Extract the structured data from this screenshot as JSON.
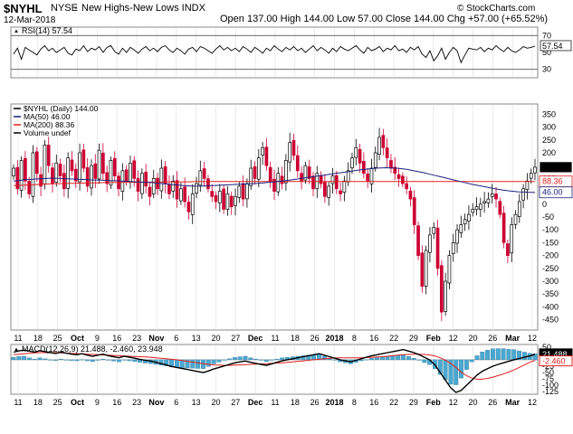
{
  "header": {
    "symbol": "$NYHL",
    "exchange": "NYSE",
    "name": "New Highs-New Lows INDX",
    "date": "12-Mar-2018",
    "ohlc": "Open 137.00  High 144.00  Low 57.00  Close 144.00  Chg +57.00 (+65.52%)",
    "copyright": "© StockCharts.com"
  },
  "colors": {
    "up": "#000000",
    "down": "#cc0033",
    "ma50": "#1a237e",
    "ma200": "#e02020",
    "macd": "#000000",
    "signal": "#e02020",
    "hist": "#4aa8d0",
    "grid": "#dddddd",
    "panel_border": "#888888"
  },
  "chart_data": [
    {
      "type": "line",
      "panel": "rsi",
      "legend": "RSI(14) 57.54",
      "ylim": [
        20,
        80
      ],
      "yticks": [
        70,
        50,
        30
      ],
      "levels": [
        70,
        30
      ],
      "last_label": "57.54",
      "series": [
        {
          "name": "RSI(14)",
          "values": [
            48,
            55,
            42,
            56,
            53,
            50,
            47,
            54,
            58,
            52,
            55,
            50,
            53,
            56,
            49,
            47,
            54,
            52,
            58,
            51,
            55,
            53,
            57,
            50,
            56,
            58,
            51,
            48,
            55,
            50,
            56,
            53,
            49,
            54,
            57,
            52,
            55,
            51,
            56,
            58,
            53,
            50,
            55,
            52,
            48,
            54,
            56,
            51,
            57,
            55,
            52,
            49,
            54,
            58,
            53,
            56,
            52,
            55,
            51,
            57,
            54,
            50,
            56,
            53,
            49,
            55,
            52,
            58,
            54,
            51,
            56,
            53,
            57,
            52,
            55,
            50,
            54,
            58,
            52,
            56,
            53,
            49,
            55,
            51,
            57,
            54,
            52,
            55,
            58,
            53,
            49,
            56,
            52,
            54,
            57,
            51,
            55,
            53,
            58,
            52,
            54,
            50,
            56,
            53,
            57,
            48,
            44,
            52,
            40,
            46,
            55,
            42,
            50,
            56,
            52,
            38,
            47,
            55,
            54,
            53,
            56,
            51,
            55,
            53,
            58,
            54,
            51,
            56,
            52,
            50,
            53,
            57,
            55,
            56,
            57.54
          ]
        }
      ]
    },
    {
      "type": "candlestick",
      "panel": "price",
      "legend": [
        "$NYHL (Daily) 144.00",
        "MA(50) 46.00",
        "MA(200) 88.36",
        "Volume undef"
      ],
      "ylim": [
        -490,
        390
      ],
      "yticks": [
        350,
        300,
        250,
        200,
        150,
        100,
        50,
        0,
        -50,
        -100,
        -150,
        -200,
        -250,
        -300,
        -350,
        -400,
        -450
      ],
      "value_labels": {
        "close": "144.00",
        "ma200": "88.36",
        "ma50": "46.00"
      },
      "series": [
        {
          "name": "$NYHL",
          "values": [
            140,
            60,
            170,
            90,
            40,
            200,
            120,
            70,
            230,
            150,
            80,
            160,
            110,
            60,
            180,
            130,
            90,
            200,
            140,
            70,
            150,
            100,
            210,
            120,
            80,
            170,
            110,
            60,
            130,
            90,
            160,
            100,
            50,
            120,
            70,
            30,
            100,
            60,
            140,
            80,
            40,
            90,
            20,
            60,
            10,
            -30,
            40,
            80,
            130,
            100,
            60,
            30,
            10,
            50,
            -20,
            40,
            -10,
            30,
            70,
            20,
            80,
            140,
            100,
            180,
            220,
            150,
            90,
            50,
            120,
            80,
            170,
            240,
            190,
            130,
            90,
            150,
            100,
            60,
            120,
            80,
            30,
            70,
            110,
            60,
            40,
            90,
            130,
            180,
            220,
            160,
            120,
            90,
            140,
            200,
            260,
            220,
            180,
            140,
            120,
            100,
            80,
            60,
            20,
            -80,
            -200,
            -320,
            -180,
            -120,
            -90,
            -250,
            -420,
            -300,
            -200,
            -150,
            -100,
            -80,
            -60,
            -40,
            -20,
            -10,
            0,
            10,
            20,
            40,
            20,
            -40,
            -150,
            -200,
            -80,
            -40,
            10,
            60,
            90,
            120,
            144
          ]
        },
        {
          "name": "MA(50)",
          "values": [
            90,
            92,
            95,
            96,
            98,
            99,
            100,
            101,
            101,
            100,
            99,
            98,
            97,
            96,
            95,
            94,
            94,
            93,
            92,
            91,
            90,
            89,
            88,
            87,
            86,
            85,
            84,
            82,
            80,
            78,
            76,
            74,
            72,
            71,
            70,
            70,
            71,
            72,
            73,
            74,
            75,
            76,
            77,
            78,
            79,
            80,
            81,
            83,
            85,
            87,
            89,
            91,
            94,
            97,
            100,
            103,
            106,
            109,
            112,
            115,
            118,
            121,
            124,
            127,
            130,
            133,
            136,
            138,
            140,
            141,
            142,
            141,
            140,
            138,
            135,
            131,
            127,
            123,
            118,
            113,
            108,
            103,
            98,
            93,
            88,
            83,
            78,
            74,
            70,
            66,
            62,
            58,
            55,
            52,
            50,
            48,
            47,
            46,
            46
          ]
        },
        {
          "name": "MA(200)",
          "values": [
            72,
            73,
            74,
            75,
            76,
            77,
            78,
            79,
            80,
            80,
            81,
            81,
            82,
            82,
            83,
            83,
            83,
            84,
            84,
            84,
            84,
            85,
            85,
            85,
            85,
            86,
            86,
            86,
            86,
            87,
            87,
            87,
            87,
            87,
            88,
            88,
            88,
            88,
            88,
            88,
            88,
            88,
            88,
            88,
            88,
            88,
            88,
            88,
            88,
            88,
            88,
            88,
            88,
            88,
            88,
            88,
            88,
            88,
            88,
            88,
            88,
            88,
            88,
            88,
            88,
            88,
            88,
            88,
            88,
            88,
            88,
            88,
            88,
            88,
            88,
            88,
            88,
            88,
            88,
            88,
            88,
            88,
            88,
            88,
            88,
            88,
            88,
            88,
            88,
            88,
            88,
            88,
            88,
            88,
            88,
            88,
            88,
            88,
            88.36
          ]
        }
      ]
    },
    {
      "type": "line",
      "panel": "macd",
      "legend": "MACD(12,26,9) 21.488, -2.460, 23.948",
      "ylim": [
        -135,
        60
      ],
      "yticks": [
        50,
        25,
        0,
        -25,
        -50,
        -75,
        -100,
        -125
      ],
      "value_labels": {
        "macd": "21.488",
        "signal": "-2.460"
      },
      "series": [
        {
          "name": "MACD",
          "values": [
            30,
            35,
            38,
            34,
            30,
            36,
            32,
            28,
            25,
            30,
            26,
            22,
            20,
            24,
            18,
            14,
            18,
            22,
            16,
            12,
            8,
            14,
            10,
            6,
            2,
            -2,
            -5,
            -10,
            -15,
            -20,
            -26,
            -30,
            -34,
            -38,
            -42,
            -46,
            -50,
            -44,
            -36,
            -30,
            -24,
            -18,
            -12,
            -8,
            -5,
            -10,
            -14,
            -18,
            -22,
            -16,
            -10,
            -4,
            0,
            4,
            8,
            12,
            16,
            20,
            24,
            18,
            12,
            6,
            0,
            -4,
            -8,
            -2,
            4,
            10,
            16,
            20,
            24,
            28,
            32,
            36,
            40,
            34,
            28,
            20,
            10,
            0,
            -20,
            -50,
            -80,
            -110,
            -128,
            -120,
            -100,
            -80,
            -60,
            -45,
            -35,
            -25,
            -18,
            -12,
            -6,
            0,
            5,
            10,
            15,
            21.488
          ]
        },
        {
          "name": "Signal",
          "values": [
            20,
            22,
            24,
            26,
            27,
            28,
            28,
            28,
            28,
            27,
            26,
            25,
            24,
            23,
            22,
            21,
            20,
            19,
            18,
            17,
            16,
            15,
            14,
            13,
            12,
            11,
            10,
            8,
            6,
            4,
            2,
            0,
            -3,
            -6,
            -9,
            -12,
            -15,
            -18,
            -20,
            -21,
            -22,
            -22,
            -21,
            -20,
            -19,
            -18,
            -17,
            -16,
            -15,
            -14,
            -13,
            -12,
            -10,
            -8,
            -6,
            -4,
            -2,
            0,
            2,
            4,
            6,
            7,
            8,
            8,
            8,
            8,
            8,
            9,
            10,
            11,
            12,
            14,
            16,
            18,
            20,
            21,
            22,
            22,
            21,
            19,
            15,
            8,
            -2,
            -14,
            -30,
            -48,
            -62,
            -72,
            -76,
            -76,
            -73,
            -68,
            -62,
            -56,
            -48,
            -40,
            -30,
            -20,
            -10,
            -2.46
          ]
        }
      ]
    }
  ],
  "x_axis": {
    "labels": [
      "11",
      "18",
      "25",
      "Oct",
      "9",
      "16",
      "23",
      "Nov",
      "6",
      "13",
      "20",
      "27",
      "Dec",
      "11",
      "18",
      "26",
      "2018",
      "8",
      "16",
      "22",
      "29",
      "Feb",
      "12",
      "20",
      "26",
      "Mar",
      "12"
    ],
    "bold": [
      "Oct",
      "Nov",
      "Dec",
      "2018",
      "Feb",
      "Mar"
    ]
  }
}
